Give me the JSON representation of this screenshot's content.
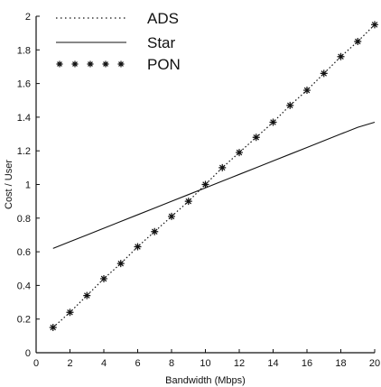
{
  "chart_data": {
    "type": "line",
    "xlabel": "Bandwidth (Mbps)",
    "ylabel": "Cost / User",
    "xlim": [
      0,
      20
    ],
    "ylim": [
      0,
      2
    ],
    "x_ticks": [
      "0",
      "2",
      "4",
      "6",
      "8",
      "10",
      "12",
      "14",
      "16",
      "18",
      "20"
    ],
    "y_ticks": [
      "0",
      "0.2",
      "0.4",
      "0.6",
      "0.8",
      "1",
      "1.2",
      "1.4",
      "1.6",
      "1.8",
      "2"
    ],
    "grid": false,
    "legend_position": "top-left",
    "series": [
      {
        "name": "ADS",
        "style": "dotted",
        "x": [
          1,
          2,
          3,
          4,
          5,
          6,
          7,
          8,
          9,
          10,
          11,
          12,
          13,
          14,
          15,
          16,
          17,
          18,
          19,
          20
        ],
        "y": [
          0.15,
          0.24,
          0.34,
          0.44,
          0.53,
          0.63,
          0.72,
          0.81,
          0.9,
          1.0,
          1.1,
          1.19,
          1.28,
          1.37,
          1.47,
          1.56,
          1.66,
          1.76,
          1.85,
          1.95
        ]
      },
      {
        "name": "Star",
        "style": "solid",
        "x": [
          1,
          2,
          3,
          4,
          5,
          6,
          7,
          8,
          9,
          10,
          11,
          12,
          13,
          14,
          15,
          16,
          17,
          18,
          19,
          20
        ],
        "y": [
          0.62,
          0.66,
          0.7,
          0.74,
          0.78,
          0.82,
          0.86,
          0.9,
          0.94,
          0.98,
          1.02,
          1.06,
          1.1,
          1.14,
          1.18,
          1.22,
          1.26,
          1.3,
          1.34,
          1.37
        ]
      },
      {
        "name": "PON",
        "style": "star-markers",
        "x": [
          1,
          2,
          3,
          4,
          5,
          6,
          7,
          8,
          9,
          10,
          11,
          12,
          13,
          14,
          15,
          16,
          17,
          18,
          19,
          20
        ],
        "y": [
          0.15,
          0.24,
          0.34,
          0.44,
          0.53,
          0.63,
          0.72,
          0.81,
          0.9,
          1.0,
          1.1,
          1.19,
          1.28,
          1.37,
          1.47,
          1.56,
          1.66,
          1.76,
          1.85,
          1.95
        ]
      }
    ]
  }
}
